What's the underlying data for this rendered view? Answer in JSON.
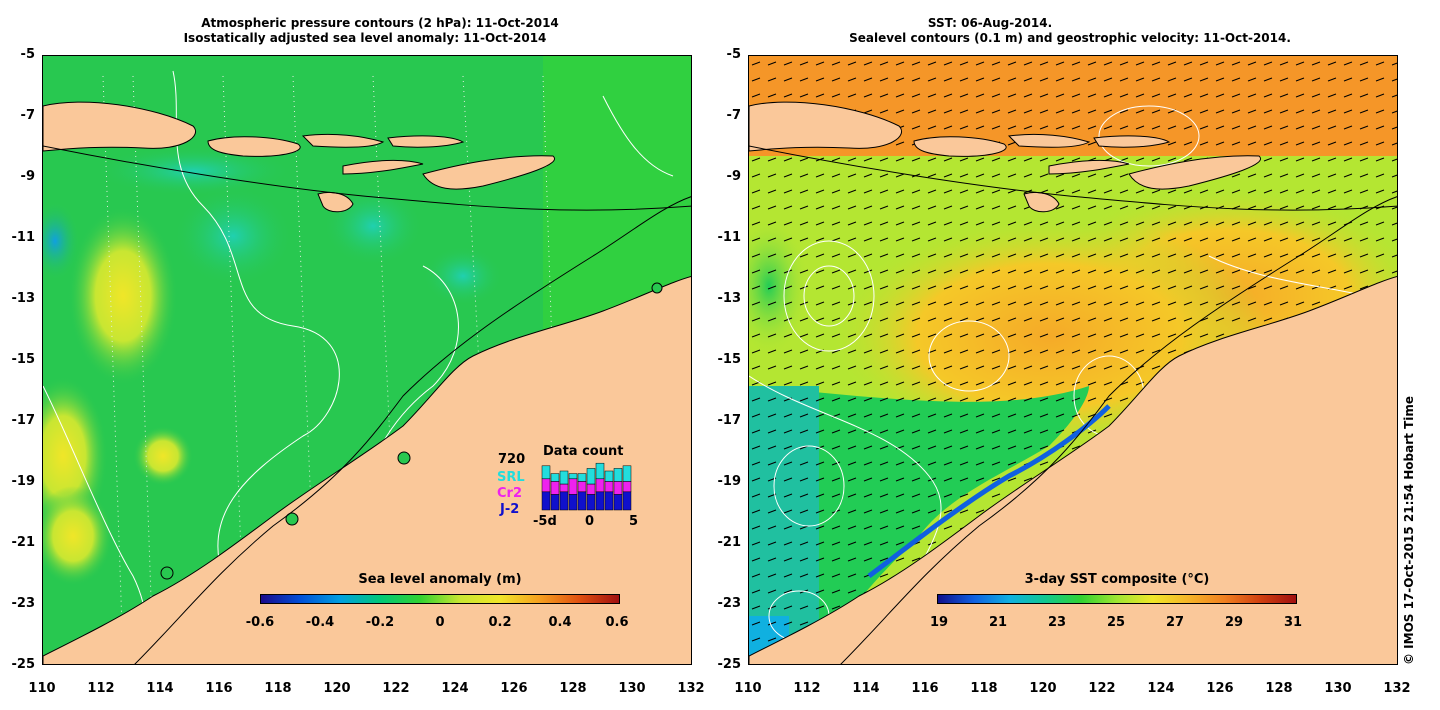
{
  "left_panel": {
    "title_line1": "Atmospheric pressure contours (2 hPa): 11-Oct-2014",
    "title_line2": "Isostatically adjusted sea level anomaly: 11-Oct-2014",
    "colorbar": {
      "title": "Sea level anomaly (m)",
      "ticks": [
        "-0.6",
        "-0.4",
        "-0.2",
        "0",
        "0.2",
        "0.4",
        "0.6"
      ],
      "colors": [
        "#1a0a8c",
        "#0050d8",
        "#00a0e0",
        "#00c878",
        "#32d232",
        "#c8e632",
        "#f0e628",
        "#f5a020",
        "#e05010",
        "#a01010"
      ]
    },
    "data_count": {
      "title": "Data count",
      "max_label": "720",
      "series": [
        {
          "name": "SRL",
          "color": "#22dddd"
        },
        {
          "name": "Cr2",
          "color": "#ee22ee"
        },
        {
          "name": "J-2",
          "color": "#1010cc"
        }
      ],
      "x_ticks": [
        "-5d",
        "0",
        "5"
      ],
      "bars": [
        {
          "j2": 0.35,
          "cr2": 0.25,
          "srl": 0.25
        },
        {
          "j2": 0.3,
          "cr2": 0.25,
          "srl": 0.15
        },
        {
          "j2": 0.35,
          "cr2": 0.15,
          "srl": 0.25
        },
        {
          "j2": 0.3,
          "cr2": 0.3,
          "srl": 0.1
        },
        {
          "j2": 0.35,
          "cr2": 0.2,
          "srl": 0.15
        },
        {
          "j2": 0.3,
          "cr2": 0.2,
          "srl": 0.3
        },
        {
          "j2": 0.35,
          "cr2": 0.25,
          "srl": 0.3
        },
        {
          "j2": 0.35,
          "cr2": 0.2,
          "srl": 0.2
        },
        {
          "j2": 0.3,
          "cr2": 0.25,
          "srl": 0.25
        },
        {
          "j2": 0.35,
          "cr2": 0.2,
          "srl": 0.3
        }
      ]
    }
  },
  "right_panel": {
    "title_line1": "SST: 06-Aug-2014.",
    "title_line2": "Sealevel contours (0.1 m) and geostrophic velocity: 11-Oct-2014.",
    "colorbar": {
      "title": "3-day SST composite (°C)",
      "ticks": [
        "19",
        "21",
        "23",
        "25",
        "27",
        "29",
        "31"
      ],
      "colors": [
        "#10108c",
        "#1060e0",
        "#10b0e0",
        "#10c890",
        "#32d232",
        "#a0e632",
        "#f0e628",
        "#f5b428",
        "#f08020",
        "#d04010",
        "#a01010"
      ]
    }
  },
  "axes": {
    "y_ticks": [
      "-5",
      "-7",
      "-9",
      "-11",
      "-13",
      "-15",
      "-17",
      "-19",
      "-21",
      "-23",
      "-25"
    ],
    "x_ticks": [
      "110",
      "112",
      "114",
      "116",
      "118",
      "120",
      "122",
      "124",
      "126",
      "128",
      "130",
      "132"
    ]
  },
  "credit": "© IMOS 17-Oct-2015 21:54 Hobart Time",
  "colors": {
    "land": "#fac89a",
    "ocean_green": "#22cc55",
    "ocean_left_base": "#28c850",
    "ocean_right_base": "#b4e632",
    "warm_orange": "#f5aa28"
  }
}
